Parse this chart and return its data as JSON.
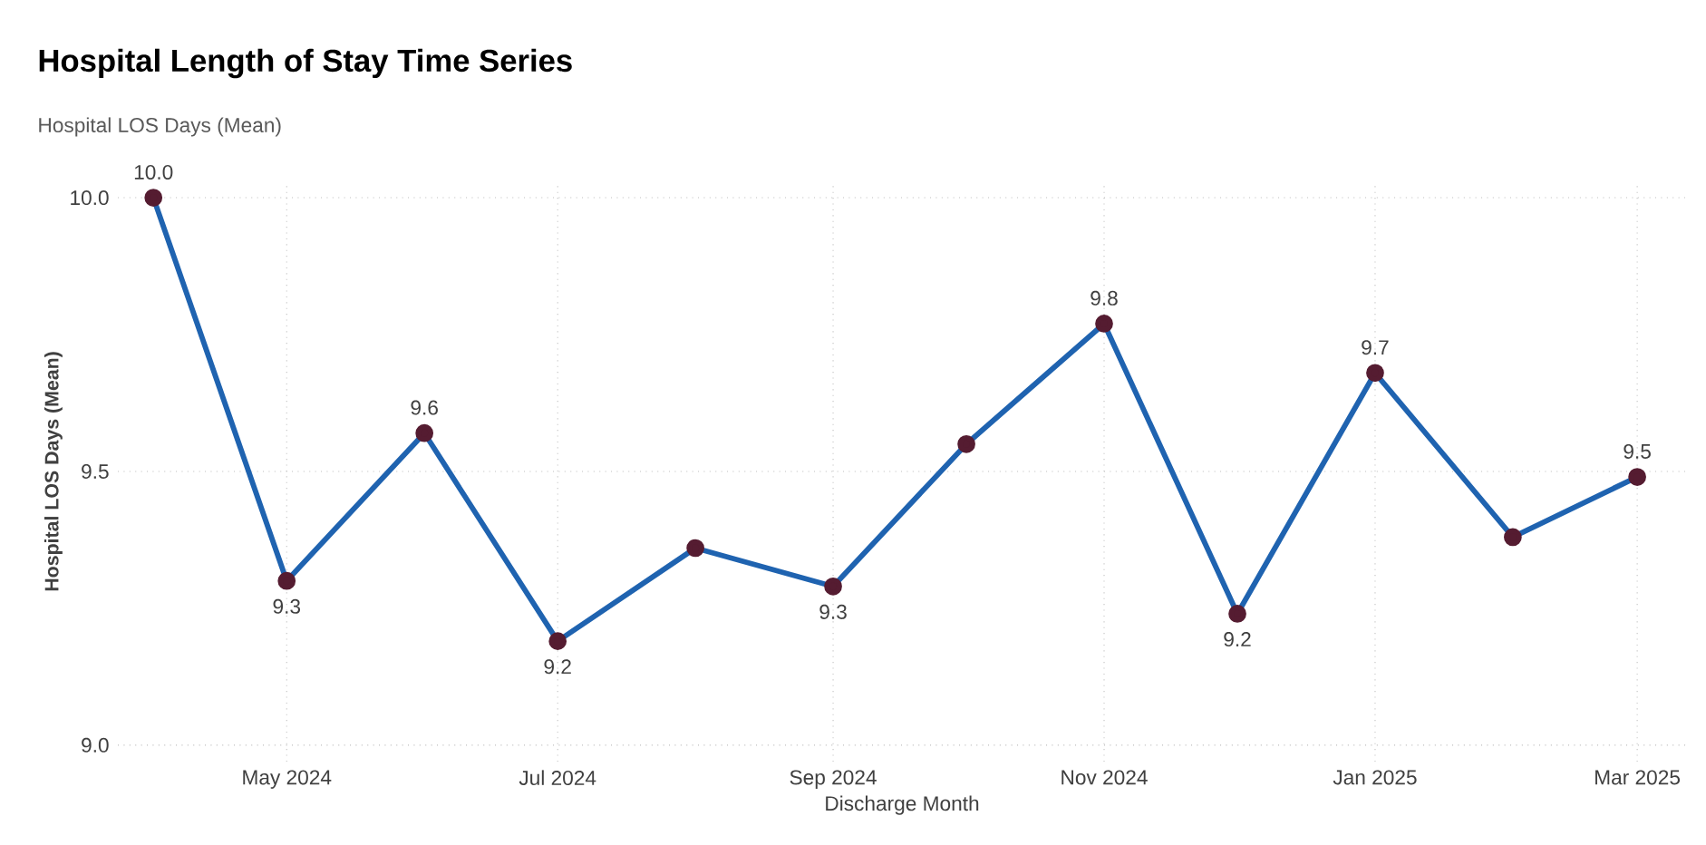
{
  "chart_data": {
    "type": "line",
    "title": "Hospital Length of Stay Time Series",
    "subtitle": "Hospital LOS Days (Mean)",
    "xlabel": "Discharge Month",
    "ylabel": "Hospital LOS Days (Mean)",
    "x": [
      "2024-04",
      "2024-05",
      "2024-06",
      "2024-07",
      "2024-08",
      "2024-09",
      "2024-10",
      "2024-11",
      "2024-12",
      "2025-01",
      "2025-02",
      "2025-03"
    ],
    "series": [
      {
        "color": "#1f63b0",
        "values": [
          10.0,
          9.3,
          9.57,
          9.19,
          9.36,
          9.29,
          9.55,
          9.77,
          9.24,
          9.68,
          9.38,
          9.49
        ],
        "value_labels": [
          "10.0",
          "9.3",
          "9.6",
          "9.2",
          null,
          "9.3",
          null,
          "9.8",
          "9.2",
          "9.7",
          null,
          "9.5"
        ]
      }
    ],
    "xlim": [
      "2024-03-24",
      "2025-03-12"
    ],
    "xticks": [
      {
        "value": "2024-05",
        "label": "May 2024"
      },
      {
        "value": "2024-07",
        "label": "Jul 2024"
      },
      {
        "value": "2024-09",
        "label": "Sep 2024"
      },
      {
        "value": "2024-11",
        "label": "Nov 2024"
      },
      {
        "value": "2025-01",
        "label": "Jan 2025"
      },
      {
        "value": "2025-03",
        "label": "Mar 2025"
      }
    ],
    "ylim": [
      8.97,
      10.03
    ],
    "yticks": [
      {
        "value": 9,
        "label": "9.0"
      },
      {
        "value": 9.5,
        "label": "9.5"
      },
      {
        "value": 10,
        "label": "10.0"
      }
    ],
    "grid": true,
    "marker": "circle",
    "line_style": "solid"
  }
}
